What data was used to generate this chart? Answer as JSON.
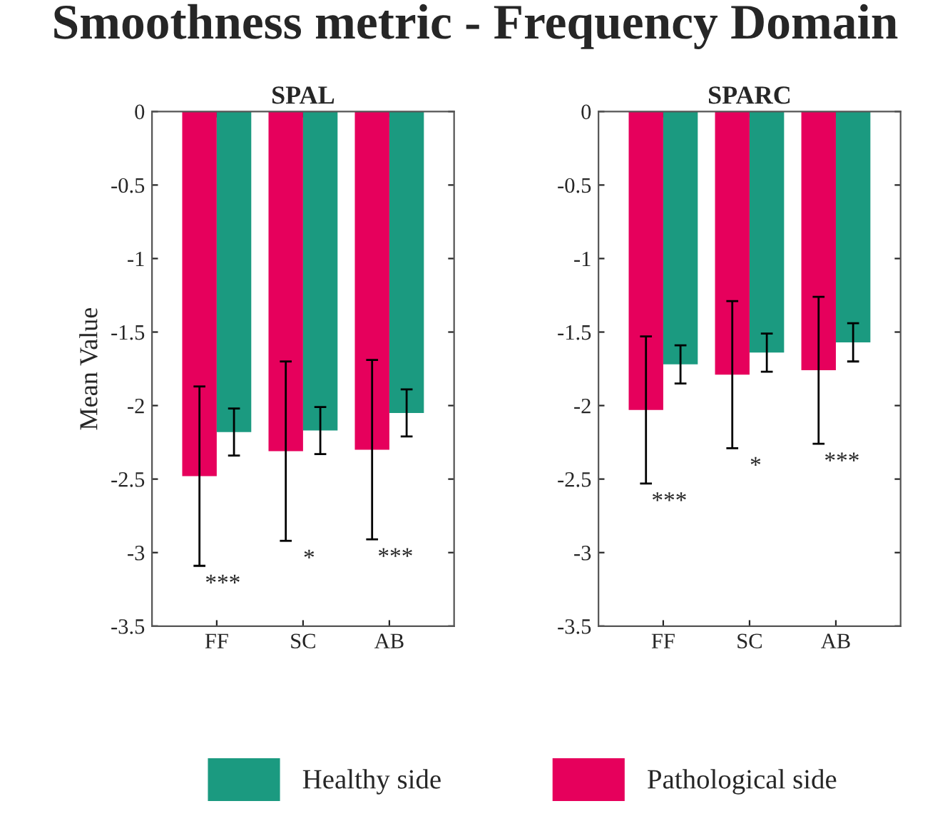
{
  "chart_data": [
    {
      "type": "bar",
      "title": "Smoothness metric - Frequency Domain",
      "subtitle": "SPAL",
      "ylabel": "Mean Value",
      "categories": [
        "FF",
        "SC",
        "AB"
      ],
      "series": [
        {
          "name": "Pathological side",
          "color": "#e6005c",
          "values": [
            -2.48,
            -2.31,
            -2.3
          ],
          "errors": [
            0.61,
            0.61,
            0.61
          ]
        },
        {
          "name": "Healthy side",
          "color": "#1b9a80",
          "values": [
            -2.18,
            -2.17,
            -2.05
          ],
          "errors": [
            0.16,
            0.16,
            0.16
          ]
        }
      ],
      "ylim": [
        -3.5,
        0
      ],
      "yticks": [
        -3.5,
        -3,
        -2.5,
        -2,
        -1.5,
        -1,
        -0.5,
        0
      ],
      "grid": false,
      "legend": "bottom",
      "annotations": [
        "***",
        "*",
        "***"
      ]
    },
    {
      "type": "bar",
      "subtitle": "SPARC",
      "categories": [
        "FF",
        "SC",
        "AB"
      ],
      "series": [
        {
          "name": "Pathological side",
          "color": "#e6005c",
          "values": [
            -2.03,
            -1.79,
            -1.76
          ],
          "errors": [
            0.5,
            0.5,
            0.5
          ]
        },
        {
          "name": "Healthy side",
          "color": "#1b9a80",
          "values": [
            -1.72,
            -1.64,
            -1.57
          ],
          "errors": [
            0.13,
            0.13,
            0.13
          ]
        }
      ],
      "ylim": [
        -3.5,
        0
      ],
      "yticks": [
        -3.5,
        -3,
        -2.5,
        -2,
        -1.5,
        -1,
        -0.5,
        0
      ],
      "grid": false,
      "legend": "bottom",
      "annotations": [
        "***",
        "*",
        "***"
      ]
    }
  ]
}
